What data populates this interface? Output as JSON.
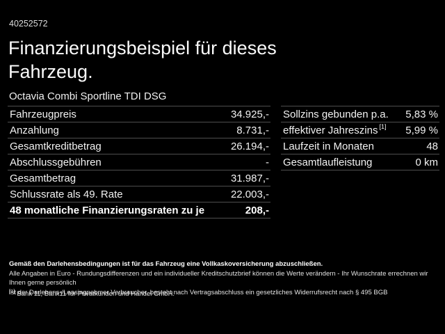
{
  "header": {
    "vehicle_id": "40252572",
    "title": "Finanzierungsbeispiel für dieses Fahrzeug.",
    "subtitle": "Octavia Combi Sportline TDI DSG"
  },
  "left_table": {
    "rows": [
      {
        "label": "Fahrzeugpreis",
        "value": "34.925,-"
      },
      {
        "label": "Anzahlung",
        "value": "8.731,-"
      },
      {
        "label": "Gesamtkreditbetrag",
        "value": "26.194,-"
      },
      {
        "label": "Abschlussgebühren",
        "value": "-"
      },
      {
        "label": "Gesamtbetrag",
        "value": "31.987,-"
      },
      {
        "label": "Schlussrate als 49. Rate",
        "value": "22.003,-"
      },
      {
        "label": "48 monatliche Finanzierungsraten zu je",
        "value": "208,-",
        "bold": true
      }
    ]
  },
  "right_table": {
    "rows": [
      {
        "label": "Sollzins gebunden p.a.",
        "value": "5,83 %"
      },
      {
        "label": "effektiver Jahreszins",
        "sup": "[1]",
        "value": "5,99 %"
      },
      {
        "label": "Laufzeit in Monaten",
        "value": "48"
      },
      {
        "label": "Gesamtlaufleistung",
        "value": "0 km"
      }
    ]
  },
  "footer": {
    "line1": "Gemäß den Darlehensbedingungen ist für das Fahrzeug eine Vollkaskoversicherung abzuschließen.",
    "line2": "Alle Angaben in Euro - Rundungsdifferenzen und ein individueller Kreditschutzbrief können die Werte verändern - Ihr Wunschrate errechnen wir Ihnen gerne persönlich",
    "line3": "Ist der Darlehens-/Leasingnehmer Verbraucher, besteht nach Vertragsabschluss ein gesetzliches Widerrufsrecht nach § 495 BGB",
    "footnote_marker": "[1]",
    "footnote_text": "Bank 11, Bank11 für Privatkunden und Handel GmbH."
  },
  "colors": {
    "background": "#000000",
    "text": "#f2f2f2",
    "divider": "#4e4e4e"
  }
}
